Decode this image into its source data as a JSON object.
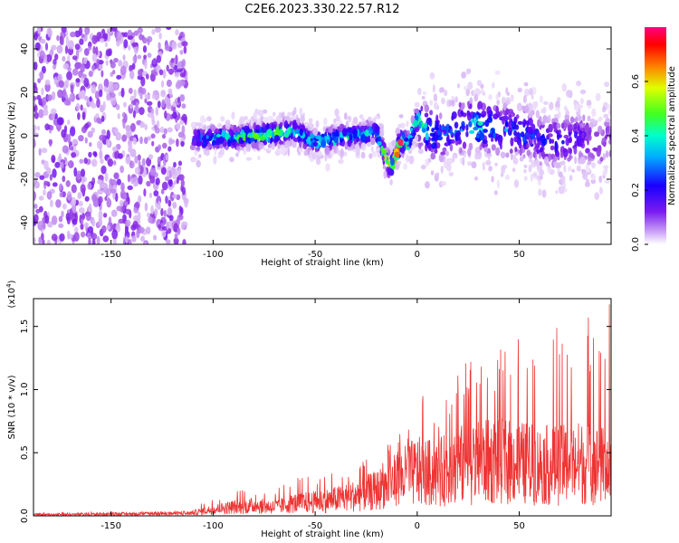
{
  "title": "C2E6.2023.330.22.57.R12",
  "colors": {
    "snr_line": "#ee3333",
    "colormap": [
      "#ffffff",
      "#d7b6f5",
      "#8a2be2",
      "#5a00ff",
      "#0000ff",
      "#00c8ff",
      "#00ff9c",
      "#40ff00",
      "#ffd000",
      "#ff3000",
      "#ff0090"
    ]
  },
  "chart_data": [
    {
      "id": "spectrogram",
      "type": "heatmap",
      "xlabel": "Height of straight line (km)",
      "ylabel": "Frequency (Hz)",
      "xlim": [
        -188,
        95
      ],
      "ylim": [
        -50,
        50
      ],
      "xticks": [
        -150,
        -100,
        -50,
        0,
        50
      ],
      "yticks": [
        -40,
        -20,
        0,
        20,
        40
      ],
      "colorbar": {
        "label": "Normalized spectral amplitude",
        "range": [
          0,
          0.8
        ],
        "ticks": [
          "0.0",
          "0.2",
          "0.4",
          "0.6"
        ]
      },
      "noise_region_x": [
        -188,
        -113
      ],
      "no_data_region_x": [
        -113,
        -110
      ],
      "signal_ridge": {
        "x": [
          -113,
          -100,
          -90,
          -80,
          -70,
          -60,
          -50,
          -40,
          -30,
          -20,
          -15,
          -12,
          -8,
          -5,
          0,
          5,
          10,
          20,
          30,
          40,
          50,
          60,
          70,
          80,
          90,
          95
        ],
        "f": [
          -2,
          -1,
          -1,
          0,
          1,
          2,
          -3,
          -1,
          0,
          2,
          -12,
          -14,
          -2,
          -5,
          8,
          2,
          0,
          4,
          5,
          3,
          2,
          -2,
          -3,
          0,
          -5,
          0
        ],
        "amp": [
          0.3,
          0.45,
          0.5,
          0.55,
          0.6,
          0.55,
          0.45,
          0.5,
          0.45,
          0.4,
          0.65,
          0.7,
          0.8,
          0.55,
          0.5,
          0.45,
          0.35,
          0.4,
          0.45,
          0.4,
          0.35,
          0.3,
          0.3,
          0.25,
          0.2,
          0.2
        ]
      }
    },
    {
      "id": "snr",
      "type": "line",
      "xlabel": "Height of straight line (km)",
      "ylabel": "SNR (10 * v/v)",
      "y_multiplier": "(x10",
      "y_multiplier_exp": "4",
      "y_multiplier_close": ")",
      "xlim": [
        -188,
        95
      ],
      "ylim": [
        0,
        1.72
      ],
      "xticks": [
        -150,
        -100,
        -50,
        0,
        50
      ],
      "yticks": [
        "0.0",
        "0.5",
        "1.0",
        "1.5"
      ],
      "ytick_values": [
        0,
        0.5,
        1.0,
        1.5
      ],
      "envelope": {
        "x": [
          -188,
          -140,
          -112,
          -100,
          -90,
          -80,
          -70,
          -60,
          -50,
          -40,
          -30,
          -20,
          -10,
          -5,
          0,
          10,
          15,
          20,
          30,
          40,
          50,
          60,
          70,
          80,
          90,
          95
        ],
        "mean": [
          0.01,
          0.015,
          0.02,
          0.05,
          0.07,
          0.08,
          0.07,
          0.1,
          0.11,
          0.13,
          0.16,
          0.2,
          0.28,
          0.32,
          0.35,
          0.33,
          0.38,
          0.4,
          0.42,
          0.43,
          0.42,
          0.4,
          0.4,
          0.42,
          0.4,
          0.38
        ],
        "peak": [
          0.03,
          0.03,
          0.04,
          0.15,
          0.2,
          0.22,
          0.2,
          0.3,
          0.32,
          0.35,
          0.4,
          0.5,
          0.65,
          0.7,
          1.0,
          0.9,
          1.05,
          1.2,
          1.3,
          1.3,
          1.5,
          1.4,
          1.6,
          1.6,
          1.65,
          1.7
        ]
      }
    }
  ]
}
